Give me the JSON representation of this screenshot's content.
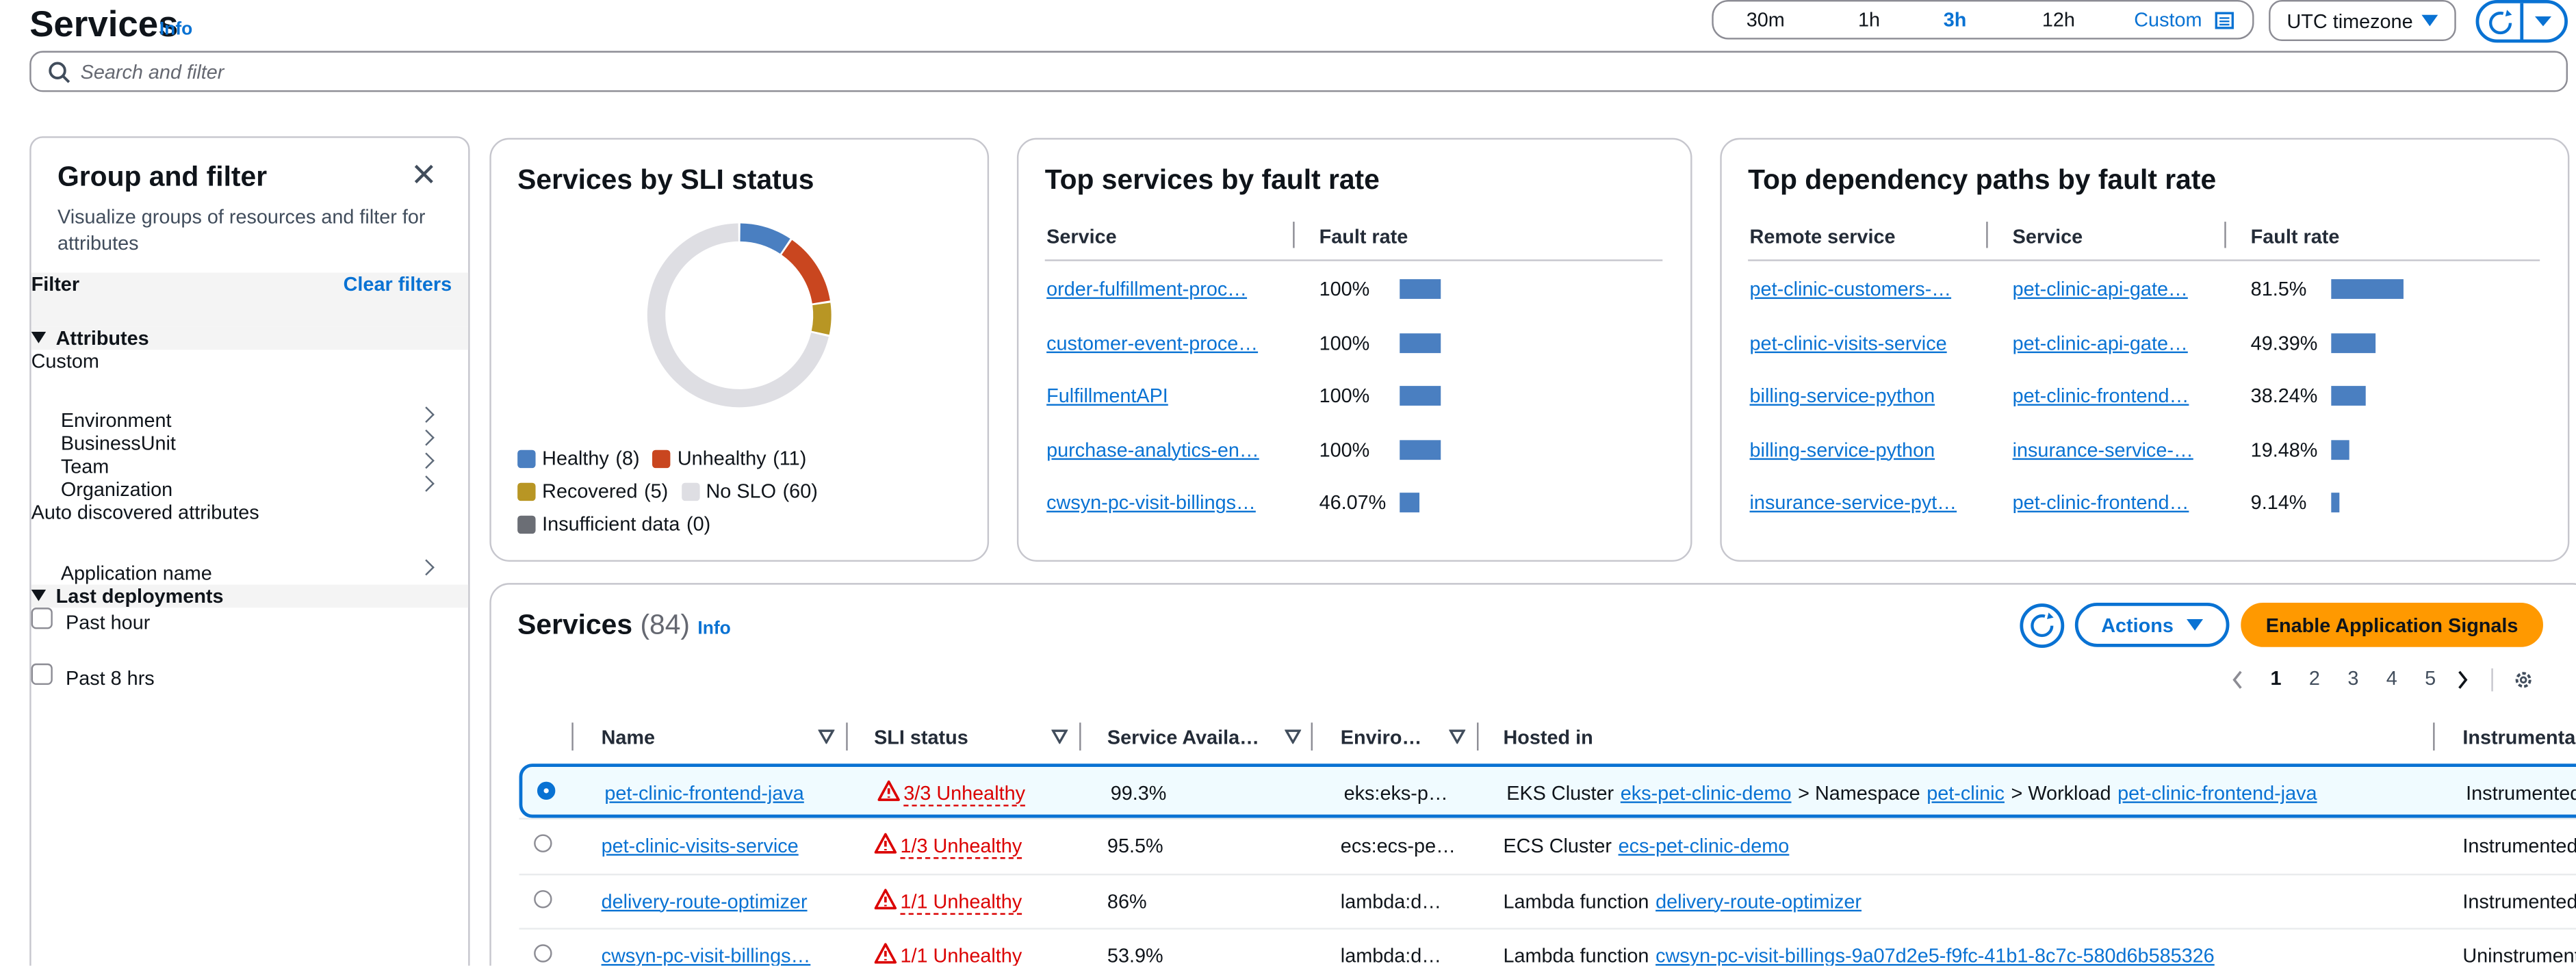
{
  "header": {
    "title": "Services",
    "info": "Info",
    "time_ranges": [
      "30m",
      "1h",
      "3h",
      "12h",
      "Custom"
    ],
    "selected_time_range": 2,
    "timezone": "UTC timezone",
    "search_placeholder": "Search and filter"
  },
  "filter_panel": {
    "title": "Group and filter",
    "description": "Visualize groups of resources and filter for attributes",
    "filter_label": "Filter",
    "clear_filters": "Clear filters",
    "attributes_heading": "Attributes",
    "custom_heading": "Custom",
    "custom_items": [
      "Environment",
      "BusinessUnit",
      "Team",
      "Organization"
    ],
    "auto_heading": "Auto discovered attributes",
    "auto_items": [
      "Application name"
    ],
    "deployments_heading": "Last deployments",
    "deployments": [
      "Past hour",
      "Past 8 hrs"
    ]
  },
  "chart_data": {
    "type": "donut",
    "title": "Services by SLI status",
    "categories": [
      "Healthy",
      "Unhealthy",
      "Recovered",
      "No SLO",
      "Insufficient data"
    ],
    "values": [
      8,
      11,
      5,
      60,
      0
    ],
    "value_labels": [
      "(8)",
      "(11)",
      "(5)",
      "(60)",
      "(0)"
    ],
    "colors": [
      "#4a7fc1",
      "#c9461f",
      "#b89624",
      "#dedee3",
      "#6b6e75"
    ]
  },
  "fault_card": {
    "title": "Top services by fault rate",
    "columns": [
      "Service",
      "Fault rate"
    ],
    "rows": [
      {
        "service": "order-fulfillment-proc…",
        "rate": 100,
        "rate_label": "100%"
      },
      {
        "service": "customer-event-proce…",
        "rate": 100,
        "rate_label": "100%"
      },
      {
        "service": "FulfillmentAPI",
        "rate": 100,
        "rate_label": "100%"
      },
      {
        "service": "purchase-analytics-en…",
        "rate": 100,
        "rate_label": "100%"
      },
      {
        "service": "cwsyn-pc-visit-billings…",
        "rate": 46.07,
        "rate_label": "46.07%"
      }
    ]
  },
  "dependency_card": {
    "title": "Top dependency paths by fault rate",
    "columns": [
      "Remote service",
      "Service",
      "Fault rate"
    ],
    "rows": [
      {
        "remote": "pet-clinic-customers-…",
        "service": "pet-clinic-api-gate…",
        "rate": 81.5,
        "rate_label": "81.5%"
      },
      {
        "remote": "pet-clinic-visits-service",
        "service": "pet-clinic-api-gate…",
        "rate": 49.39,
        "rate_label": "49.39%"
      },
      {
        "remote": "billing-service-python",
        "service": "pet-clinic-frontend…",
        "rate": 38.24,
        "rate_label": "38.24%"
      },
      {
        "remote": "billing-service-python",
        "service": "insurance-service-…",
        "rate": 19.48,
        "rate_label": "19.48%"
      },
      {
        "remote": "insurance-service-pyt…",
        "service": "pet-clinic-frontend…",
        "rate": 9.14,
        "rate_label": "9.14%"
      }
    ]
  },
  "services_table": {
    "title": "Services",
    "count_label": "(84)",
    "info": "Info",
    "actions": "Actions",
    "enable": "Enable Application Signals",
    "pages": [
      1,
      2,
      3,
      4,
      5
    ],
    "current_page": 1,
    "columns": [
      "Name",
      "SLI status",
      "Service Availa…",
      "Enviro…",
      "Hosted in",
      "Instrumenta…"
    ],
    "selected_row": 0,
    "rows": [
      {
        "name": "pet-clinic-frontend-java",
        "sli": "3/3 Unhealthy",
        "availability": "99.3%",
        "environment": "eks:eks-p…",
        "hosted": [
          {
            "text": "EKS Cluster"
          },
          {
            "link": "eks-pet-clinic-demo"
          },
          {
            "text": "> Namespace"
          },
          {
            "link": "pet-clinic"
          },
          {
            "text": "> Workload"
          },
          {
            "link": "pet-clinic-frontend-java"
          }
        ],
        "instrumentation": "Instrumented"
      },
      {
        "name": "pet-clinic-visits-service",
        "sli": "1/3 Unhealthy",
        "availability": "95.5%",
        "environment": "ecs:ecs-pe…",
        "hosted": [
          {
            "text": "ECS Cluster"
          },
          {
            "link": "ecs-pet-clinic-demo"
          }
        ],
        "instrumentation": "Instrumented"
      },
      {
        "name": "delivery-route-optimizer",
        "sli": "1/1 Unhealthy",
        "availability": "86%",
        "environment": "lambda:d…",
        "hosted": [
          {
            "text": "Lambda function"
          },
          {
            "link": "delivery-route-optimizer"
          }
        ],
        "instrumentation": "Instrumented"
      },
      {
        "name": "cwsyn-pc-visit-billings…",
        "sli": "1/1 Unhealthy",
        "availability": "53.9%",
        "environment": "lambda:d…",
        "hosted": [
          {
            "text": "Lambda function"
          },
          {
            "link": "cwsyn-pc-visit-billings-9a07d2e5-f9fc-41b1-8c7c-580d6b585326"
          }
        ],
        "instrumentation": "Uninstrumented"
      }
    ]
  }
}
